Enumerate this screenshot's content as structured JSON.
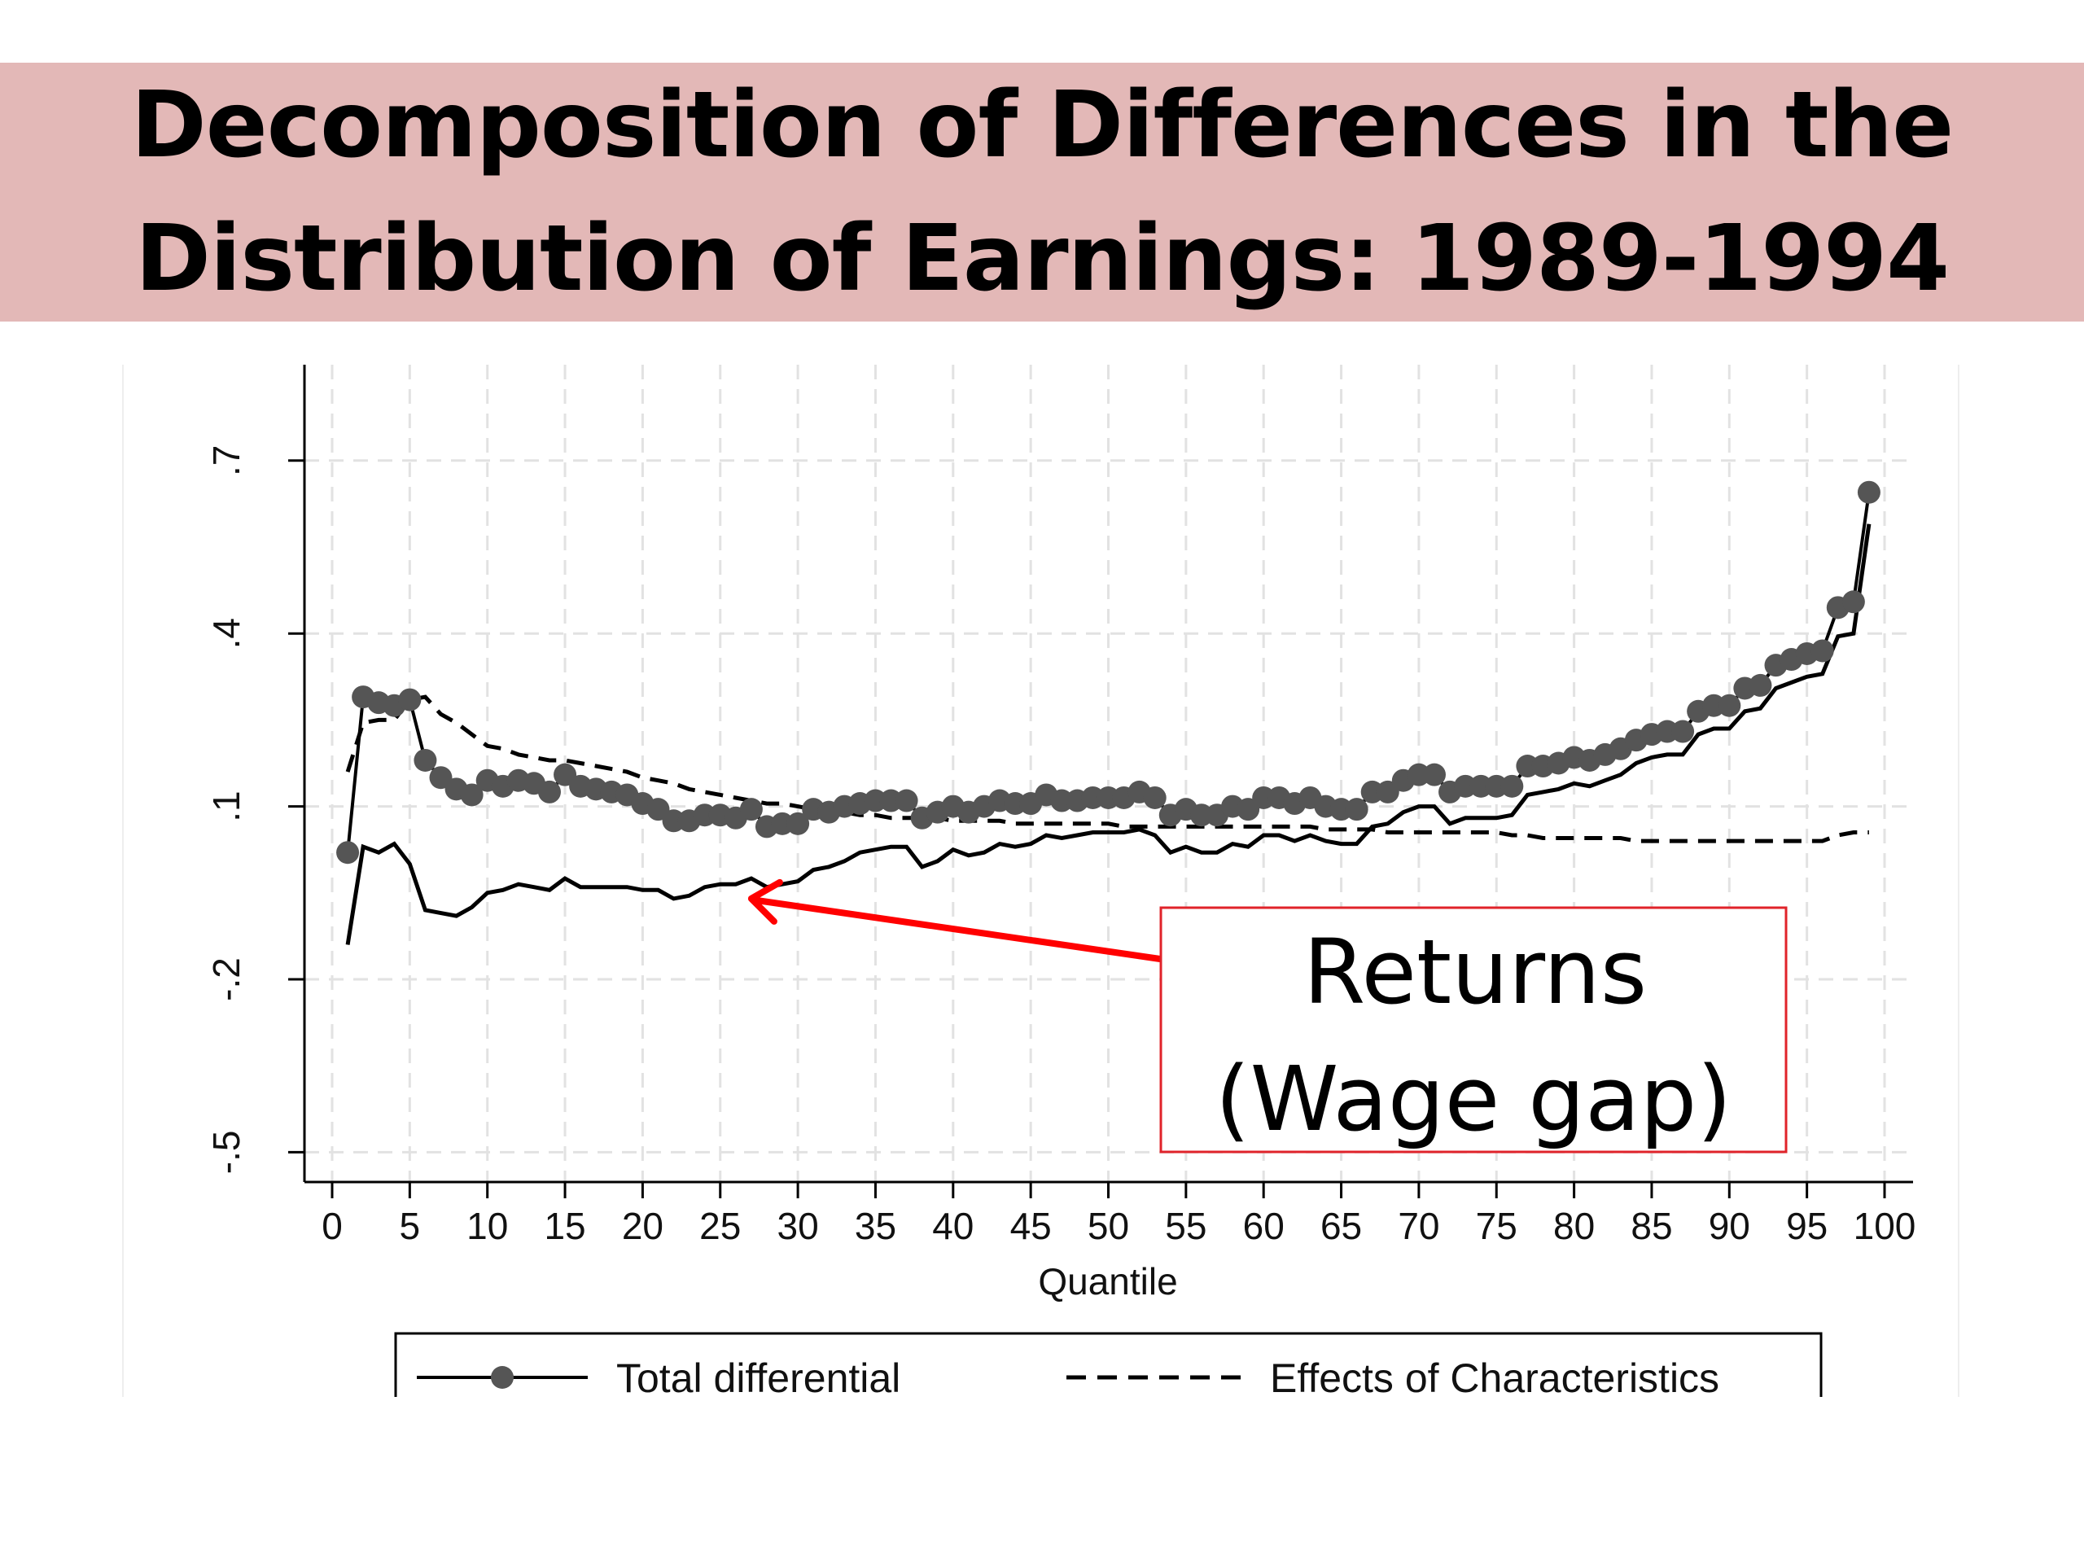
{
  "slide": {
    "title_line1": "Decomposition of Differences in the",
    "title_line2": "Distribution of Earnings: 1989-1994",
    "banner_color": "#e3b8b7"
  },
  "annotation": {
    "line1": "Returns",
    "line2": "(Wage gap)",
    "border_color": "#e0232a",
    "arrow_color": "#ff0000",
    "points_to_quantile": 27,
    "points_to_value": -0.06
  },
  "chart_data": {
    "type": "line",
    "xlabel": "Quantile",
    "ylabel": "",
    "xlim": [
      0,
      100
    ],
    "ylim": [
      -0.55,
      0.85
    ],
    "x_ticks": [
      0,
      5,
      10,
      15,
      20,
      25,
      30,
      35,
      40,
      45,
      50,
      55,
      60,
      65,
      70,
      75,
      80,
      85,
      90,
      95,
      100
    ],
    "x_tick_labels": [
      "0",
      "5",
      "10",
      "15",
      "20",
      "25",
      "30",
      "35",
      "40",
      "45",
      "50",
      "55",
      "60",
      "65",
      "70",
      "75",
      "80",
      "85",
      "90",
      "95",
      "100"
    ],
    "y_ticks": [
      -0.5,
      -0.2,
      0.1,
      0.4,
      0.7
    ],
    "y_tick_labels": [
      "-.5",
      "-.2",
      ".1",
      ".4",
      ".7"
    ],
    "grid": true,
    "legend_position": "bottom",
    "x": [
      1,
      2,
      3,
      4,
      5,
      6,
      7,
      8,
      9,
      10,
      11,
      12,
      13,
      14,
      15,
      16,
      17,
      18,
      19,
      20,
      21,
      22,
      23,
      24,
      25,
      26,
      27,
      28,
      29,
      30,
      31,
      32,
      33,
      34,
      35,
      36,
      37,
      38,
      39,
      40,
      41,
      42,
      43,
      44,
      45,
      46,
      47,
      48,
      49,
      50,
      51,
      52,
      53,
      54,
      55,
      56,
      57,
      58,
      59,
      60,
      61,
      62,
      63,
      64,
      65,
      66,
      67,
      68,
      69,
      70,
      71,
      72,
      73,
      74,
      75,
      76,
      77,
      78,
      79,
      80,
      81,
      82,
      83,
      84,
      85,
      86,
      87,
      88,
      89,
      90,
      91,
      92,
      93,
      94,
      95,
      96,
      97,
      98,
      99
    ],
    "series": [
      {
        "name": "Total differential",
        "style": "solid-circle",
        "color": "#000000",
        "marker_color": "#555555",
        "values": [
          0.02,
          0.29,
          0.28,
          0.275,
          0.285,
          0.18,
          0.15,
          0.13,
          0.12,
          0.145,
          0.135,
          0.145,
          0.14,
          0.125,
          0.155,
          0.135,
          0.13,
          0.125,
          0.12,
          0.105,
          0.095,
          0.075,
          0.075,
          0.085,
          0.085,
          0.08,
          0.095,
          0.065,
          0.07,
          0.07,
          0.095,
          0.09,
          0.1,
          0.105,
          0.11,
          0.11,
          0.11,
          0.08,
          0.09,
          0.1,
          0.09,
          0.1,
          0.11,
          0.105,
          0.105,
          0.12,
          0.11,
          0.11,
          0.115,
          0.115,
          0.115,
          0.125,
          0.115,
          0.085,
          0.095,
          0.085,
          0.085,
          0.1,
          0.095,
          0.115,
          0.115,
          0.105,
          0.115,
          0.1,
          0.095,
          0.095,
          0.125,
          0.125,
          0.145,
          0.155,
          0.155,
          0.125,
          0.135,
          0.135,
          0.135,
          0.135,
          0.17,
          0.17,
          0.175,
          0.185,
          0.18,
          0.19,
          0.2,
          0.215,
          0.225,
          0.23,
          0.23,
          0.265,
          0.275,
          0.275,
          0.305,
          0.31,
          0.345,
          0.355,
          0.365,
          0.37,
          0.445,
          0.455,
          0.645
        ]
      },
      {
        "name": "Effects of Characteristics",
        "style": "dashed",
        "color": "#000000",
        "values": [
          0.16,
          0.245,
          0.25,
          0.25,
          0.285,
          0.29,
          0.26,
          0.245,
          0.225,
          0.205,
          0.2,
          0.19,
          0.185,
          0.18,
          0.18,
          0.175,
          0.17,
          0.165,
          0.16,
          0.15,
          0.145,
          0.14,
          0.13,
          0.125,
          0.12,
          0.115,
          0.11,
          0.105,
          0.105,
          0.1,
          0.095,
          0.09,
          0.09,
          0.085,
          0.085,
          0.08,
          0.08,
          0.08,
          0.08,
          0.075,
          0.075,
          0.075,
          0.075,
          0.07,
          0.07,
          0.07,
          0.07,
          0.07,
          0.07,
          0.07,
          0.065,
          0.065,
          0.065,
          0.065,
          0.065,
          0.065,
          0.065,
          0.065,
          0.065,
          0.065,
          0.065,
          0.065,
          0.065,
          0.06,
          0.06,
          0.06,
          0.06,
          0.055,
          0.055,
          0.055,
          0.055,
          0.055,
          0.055,
          0.055,
          0.055,
          0.05,
          0.05,
          0.045,
          0.045,
          0.045,
          0.045,
          0.045,
          0.045,
          0.04,
          0.04,
          0.04,
          0.04,
          0.04,
          0.04,
          0.04,
          0.04,
          0.04,
          0.04,
          0.04,
          0.04,
          0.04,
          0.05,
          0.055,
          0.055
        ]
      },
      {
        "name": "Returns",
        "style": "solid",
        "color": "#000000",
        "values": [
          -0.14,
          0.03,
          0.02,
          0.035,
          0.0,
          -0.08,
          -0.085,
          -0.09,
          -0.075,
          -0.05,
          -0.045,
          -0.035,
          -0.04,
          -0.045,
          -0.025,
          -0.04,
          -0.04,
          -0.04,
          -0.04,
          -0.045,
          -0.045,
          -0.06,
          -0.055,
          -0.04,
          -0.035,
          -0.035,
          -0.025,
          -0.04,
          -0.035,
          -0.03,
          -0.01,
          -0.005,
          0.005,
          0.02,
          0.025,
          0.03,
          0.03,
          -0.005,
          0.005,
          0.025,
          0.015,
          0.02,
          0.035,
          0.03,
          0.035,
          0.05,
          0.045,
          0.05,
          0.055,
          0.055,
          0.055,
          0.06,
          0.05,
          0.02,
          0.03,
          0.02,
          0.02,
          0.035,
          0.03,
          0.05,
          0.05,
          0.04,
          0.05,
          0.04,
          0.035,
          0.035,
          0.065,
          0.07,
          0.09,
          0.1,
          0.1,
          0.07,
          0.08,
          0.08,
          0.08,
          0.085,
          0.12,
          0.125,
          0.13,
          0.14,
          0.135,
          0.145,
          0.155,
          0.175,
          0.185,
          0.19,
          0.19,
          0.225,
          0.235,
          0.235,
          0.265,
          0.27,
          0.305,
          0.315,
          0.325,
          0.33,
          0.395,
          0.4,
          0.59
        ]
      }
    ],
    "legend": [
      {
        "label": "Total differential",
        "style": "solid-circle"
      },
      {
        "label": "Effects of Characteristics",
        "style": "dashed"
      }
    ]
  }
}
